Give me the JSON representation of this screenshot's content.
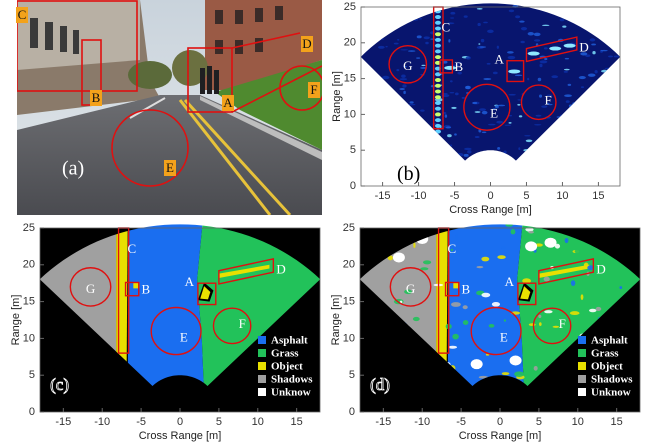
{
  "panels": [
    {
      "label": "(a)",
      "annotations": [
        "A",
        "B",
        "C",
        "D",
        "E",
        "F"
      ]
    },
    {
      "label": "(b)",
      "annotations": [
        "A",
        "B",
        "C",
        "D",
        "E",
        "F",
        "G"
      ],
      "axes": {
        "xlabel": "Cross Range [m]",
        "ylabel": "Range [m]",
        "xlim": [
          -18,
          18
        ],
        "ylim": [
          0,
          25
        ],
        "xticks": [
          -15,
          -10,
          -5,
          0,
          5,
          10,
          15
        ],
        "yticks": [
          0,
          5,
          10,
          15,
          20,
          25
        ]
      }
    },
    {
      "label": "(c)",
      "annotations": [
        "A",
        "B",
        "C",
        "D",
        "E",
        "F",
        "G"
      ],
      "axes": {
        "xlabel": "Cross Range [m]",
        "ylabel": "Range [m]",
        "xlim": [
          -18,
          18
        ],
        "ylim": [
          0,
          25
        ],
        "xticks": [
          -15,
          -10,
          -5,
          0,
          5,
          10,
          15
        ],
        "yticks": [
          0,
          5,
          10,
          15,
          20,
          25
        ]
      },
      "legend": [
        {
          "name": "Asphalt",
          "color": "#1a6ef0"
        },
        {
          "name": "Grass",
          "color": "#22c25a"
        },
        {
          "name": "Object",
          "color": "#e8e000"
        },
        {
          "name": "Shadows",
          "color": "#a0a0a0"
        },
        {
          "name": "Unknow",
          "color": "#ffffff"
        }
      ]
    },
    {
      "label": "(d)",
      "annotations": [
        "A",
        "B",
        "C",
        "D",
        "E",
        "F",
        "G"
      ],
      "axes": {
        "xlabel": "Cross Range [m]",
        "ylabel": "Range [m]",
        "xlim": [
          -18,
          18
        ],
        "ylim": [
          0,
          25
        ],
        "xticks": [
          -15,
          -10,
          -5,
          0,
          5,
          10,
          15
        ],
        "yticks": [
          0,
          5,
          10,
          15,
          20,
          25
        ]
      },
      "legend": [
        {
          "name": "Asphalt",
          "color": "#1a6ef0"
        },
        {
          "name": "Grass",
          "color": "#22c25a"
        },
        {
          "name": "Object",
          "color": "#e8e000"
        },
        {
          "name": "Shadows",
          "color": "#a0a0a0"
        },
        {
          "name": "Unknow",
          "color": "#ffffff"
        }
      ]
    }
  ]
}
